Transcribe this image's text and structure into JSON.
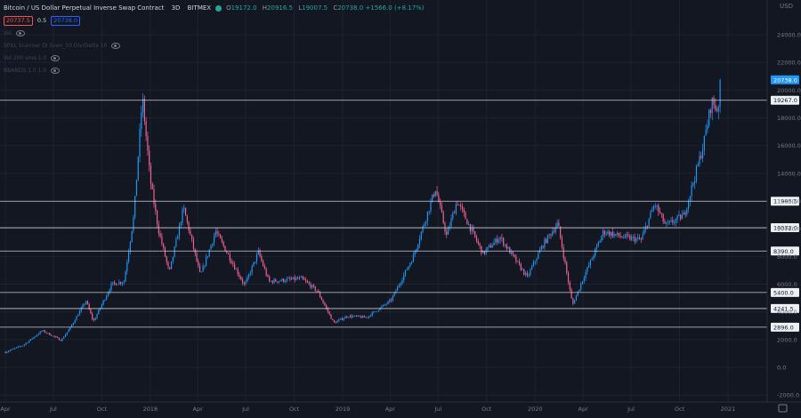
{
  "header": {
    "symbol": "Bitcoin / US Dollar Perpetual Inverse Swap Contract",
    "interval": "3D",
    "exchange": "BITMEX",
    "ohlc": [
      {
        "key": "O",
        "value": "19172.0"
      },
      {
        "key": "H",
        "value": "20916.5"
      },
      {
        "key": "L",
        "value": "19007.5"
      },
      {
        "key": "C",
        "value": "20738.0 +1566.0 (+8.17%)"
      }
    ],
    "bid": "20737.5",
    "spread": "0.5",
    "ask": "20738.0",
    "indicators": [
      "Vol",
      "SPXL Scanner DI Sven_50 Div/Delta 10",
      "Vol 200 sma 1.0",
      "BBANDS 1.0 1.0"
    ]
  },
  "colors": {
    "background": "#131722",
    "up_body": "#2196f3",
    "down_body": "#f06292",
    "price_line": "#2196f3",
    "level_line": "#c8cad1",
    "grid": "#1e2230",
    "axis_text": "#787b86"
  },
  "chart_data": {
    "type": "candlestick",
    "title": "Bitcoin / US Dollar Perpetual Inverse Swap Contract",
    "interval": "3D",
    "exchange": "BITMEX",
    "y_unit": "USD",
    "ylim": [
      -2500,
      26500
    ],
    "xlim": [
      "2017-04-01",
      "2021-01-01"
    ],
    "y_ticks": [
      -2000,
      0,
      2000,
      4000,
      6000,
      8000,
      10000,
      12000,
      14000,
      16000,
      18000,
      20000,
      22000,
      24000
    ],
    "y_tick_labels": [
      "-2000.0",
      "0.0",
      "2000.0",
      "4000.0",
      "6000.0",
      "8000.0",
      "10000.0",
      "12000.0",
      "14000.0",
      "16000.0",
      "18000.0",
      "20000.0",
      "22000.0",
      "24000.0"
    ],
    "x_ticks": [
      {
        "date": "2017-04-01",
        "label": "Apr"
      },
      {
        "date": "2017-07-01",
        "label": "Jul"
      },
      {
        "date": "2017-10-01",
        "label": "Oct"
      },
      {
        "date": "2018-01-01",
        "label": "2018"
      },
      {
        "date": "2018-04-01",
        "label": "Apr"
      },
      {
        "date": "2018-07-01",
        "label": "Jul"
      },
      {
        "date": "2018-10-01",
        "label": "Oct"
      },
      {
        "date": "2019-01-01",
        "label": "2019"
      },
      {
        "date": "2019-04-01",
        "label": "Apr"
      },
      {
        "date": "2019-07-01",
        "label": "Jul"
      },
      {
        "date": "2019-10-01",
        "label": "Oct"
      },
      {
        "date": "2020-01-01",
        "label": "2020"
      },
      {
        "date": "2020-04-01",
        "label": "Apr"
      },
      {
        "date": "2020-07-01",
        "label": "Jul"
      },
      {
        "date": "2020-10-01",
        "label": "Oct"
      },
      {
        "date": "2021-01-01",
        "label": "2021"
      }
    ],
    "horizontal_levels": [
      {
        "value": 19267.0,
        "label": "19267.0"
      },
      {
        "value": 11985.5,
        "label": "11985.5"
      },
      {
        "value": 10072.0,
        "label": "10072.0"
      },
      {
        "value": 8390.0,
        "label": "8390.0"
      },
      {
        "value": 5400.0,
        "label": "5400.0"
      },
      {
        "value": 4241.5,
        "label": "4241.5"
      },
      {
        "value": 2896.0,
        "label": "2896.0"
      }
    ],
    "last_price": {
      "value": 20738.0,
      "label": "20738.0"
    },
    "price_path": [
      [
        "2017-04-01",
        1100
      ],
      [
        "2017-05-05",
        1600
      ],
      [
        "2017-06-10",
        2650
      ],
      [
        "2017-07-16",
        1950
      ],
      [
        "2017-08-01",
        2800
      ],
      [
        "2017-09-01",
        4800
      ],
      [
        "2017-09-15",
        3300
      ],
      [
        "2017-10-20",
        6000
      ],
      [
        "2017-11-12",
        6200
      ],
      [
        "2017-12-01",
        11000
      ],
      [
        "2017-12-17",
        19500
      ],
      [
        "2018-01-01",
        13500
      ],
      [
        "2018-01-16",
        10000
      ],
      [
        "2018-02-06",
        6800
      ],
      [
        "2018-03-05",
        11500
      ],
      [
        "2018-04-06",
        6600
      ],
      [
        "2018-05-05",
        9800
      ],
      [
        "2018-06-29",
        5900
      ],
      [
        "2018-07-25",
        8300
      ],
      [
        "2018-08-14",
        6200
      ],
      [
        "2018-10-15",
        6400
      ],
      [
        "2018-11-14",
        5500
      ],
      [
        "2018-12-15",
        3200
      ],
      [
        "2019-01-10",
        3700
      ],
      [
        "2019-02-15",
        3600
      ],
      [
        "2019-04-02",
        4800
      ],
      [
        "2019-05-15",
        8000
      ],
      [
        "2019-06-26",
        12900
      ],
      [
        "2019-07-17",
        9500
      ],
      [
        "2019-08-06",
        12000
      ],
      [
        "2019-09-24",
        8200
      ],
      [
        "2019-10-26",
        9400
      ],
      [
        "2019-12-17",
        6500
      ],
      [
        "2020-01-15",
        8800
      ],
      [
        "2020-02-13",
        10400
      ],
      [
        "2020-03-12",
        4500
      ],
      [
        "2020-04-01",
        6400
      ],
      [
        "2020-05-10",
        9800
      ],
      [
        "2020-06-15",
        9400
      ],
      [
        "2020-07-20",
        9200
      ],
      [
        "2020-08-15",
        11800
      ],
      [
        "2020-09-05",
        10200
      ],
      [
        "2020-10-10",
        11000
      ],
      [
        "2020-11-15",
        16000
      ],
      [
        "2020-12-01",
        19200
      ],
      [
        "2020-12-13",
        18500
      ],
      [
        "2020-12-17",
        20738
      ]
    ]
  }
}
